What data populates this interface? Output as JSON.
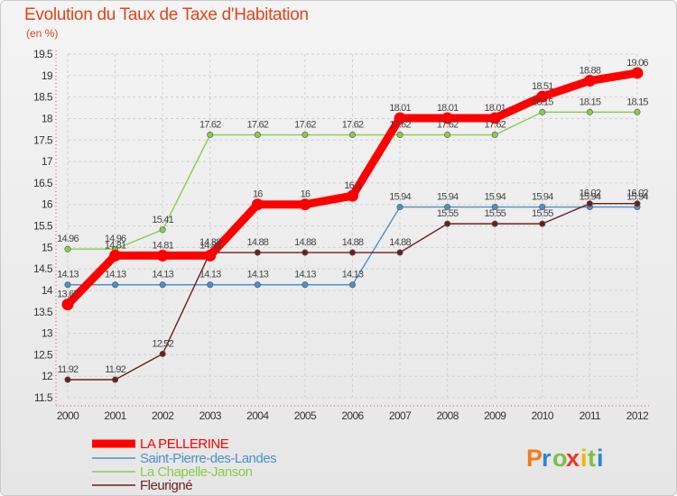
{
  "chart_data": {
    "type": "line",
    "title": "Evolution du Taux de Taxe d'Habitation",
    "subtitle": "(en %)",
    "x": [
      "2000",
      "2001",
      "2002",
      "2003",
      "2004",
      "2005",
      "2006",
      "2007",
      "2008",
      "2009",
      "2010",
      "2011",
      "2012"
    ],
    "ylim": [
      11.5,
      19.5
    ],
    "yticks": [
      "11.5",
      "12",
      "12.5",
      "13",
      "13.5",
      "14",
      "14.5",
      "15",
      "15.5",
      "16",
      "16.5",
      "17",
      "17.5",
      "18",
      "18.5",
      "19",
      "19.5"
    ],
    "series": [
      {
        "name": "LA PELLERINE",
        "color": "#ff0000",
        "values": [
          13.67,
          14.81,
          14.81,
          14.81,
          16,
          16,
          16.2,
          18.01,
          18.01,
          18.01,
          18.51,
          18.88,
          19.06
        ],
        "labels": [
          "13.67",
          "14.81",
          "14.81",
          "14.81",
          "16",
          "16",
          "16.2",
          "18.01",
          "18.01",
          "18.01",
          "18.51",
          "18.88",
          "19.06"
        ]
      },
      {
        "name": "Saint-Pierre-des-Landes",
        "color": "#4d8fcc",
        "values": [
          14.13,
          14.13,
          14.13,
          14.13,
          14.13,
          14.13,
          14.13,
          15.94,
          15.94,
          15.94,
          15.94,
          15.94,
          15.94
        ],
        "labels": [
          "14.13",
          "14.13",
          "14.13",
          "14.13",
          "14.13",
          "14.13",
          "14.13",
          "15.94",
          "15.94",
          "15.94",
          "15.94",
          "15.94",
          "15.94"
        ]
      },
      {
        "name": "La Chapelle-Janson",
        "color": "#88cc4a",
        "values": [
          14.96,
          14.96,
          15.41,
          17.62,
          17.62,
          17.62,
          17.62,
          17.62,
          17.62,
          17.62,
          18.15,
          18.15,
          18.15
        ],
        "labels": [
          "14.96",
          "14.96",
          "15.41",
          "17.62",
          "17.62",
          "17.62",
          "17.62",
          "17.62",
          "17.62",
          "17.62",
          "18.15",
          "18.15",
          "18.15"
        ]
      },
      {
        "name": "Fleurigné",
        "color": "#6b1f1f",
        "values": [
          11.92,
          11.92,
          12.52,
          14.88,
          14.88,
          14.88,
          14.88,
          14.88,
          15.55,
          15.55,
          15.55,
          16.02,
          16.02
        ],
        "labels": [
          "11.92",
          "11.92",
          "12.52",
          "14.88",
          "14.88",
          "14.88",
          "14.88",
          "14.88",
          "15.55",
          "15.55",
          "15.55",
          "16.02",
          "16.02"
        ]
      }
    ]
  },
  "logo": {
    "text": "Proxiti",
    "letters": [
      "P",
      "r",
      "o",
      "x",
      "i",
      "t",
      "i"
    ],
    "colors": [
      "#f07d1a",
      "#2a86d1",
      "#7ac143",
      "#e8382c",
      "#f2b500",
      "#7ac143",
      "#2a86d1"
    ]
  }
}
